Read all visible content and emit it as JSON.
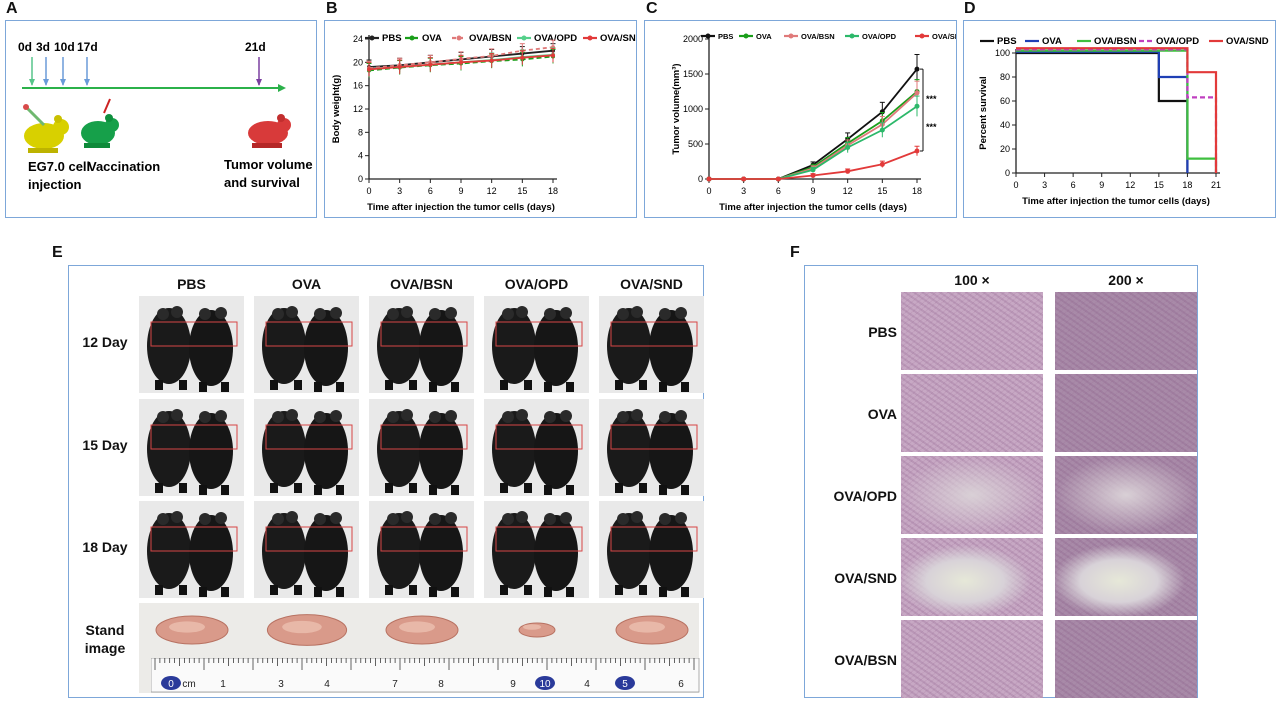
{
  "panel_labels": {
    "A": "A",
    "B": "B",
    "C": "C",
    "D": "D",
    "E": "E",
    "F": "F"
  },
  "panelA": {
    "timepoints": [
      "0d",
      "3d",
      "10d",
      "17d",
      "21d"
    ],
    "label1_line1": "EG7.0 cell",
    "label1_line2": "injection",
    "label2": "Vaccination",
    "label3_line1": "Tumor volume",
    "label3_line2": "and survival"
  },
  "chart_data": [
    {
      "type": "line",
      "panel": "B",
      "xlabel": "Time after injection the tumor cells (days)",
      "ylabel": "Body weight(g)",
      "x": [
        0,
        3,
        6,
        9,
        12,
        15,
        18
      ],
      "xlim": [
        0,
        18
      ],
      "ylim": [
        0,
        24
      ],
      "yticks": [
        0,
        4,
        8,
        12,
        16,
        20,
        24
      ],
      "legend": "top",
      "series": [
        {
          "name": "PBS",
          "color": "#222222",
          "dash": "",
          "values": [
            19.2,
            19.5,
            20.0,
            20.5,
            21.0,
            21.5,
            22.0
          ]
        },
        {
          "name": "OVA",
          "color": "#1a9e1a",
          "dash": "5,3",
          "values": [
            18.6,
            19.1,
            19.5,
            19.8,
            20.2,
            20.5,
            21.0
          ]
        },
        {
          "name": "OVA/BSN",
          "color": "#e07a7a",
          "dash": "4,3",
          "values": [
            19.0,
            19.5,
            20.0,
            20.6,
            21.1,
            22.0,
            22.6
          ]
        },
        {
          "name": "OVA/OPD",
          "color": "#55d08a",
          "dash": "",
          "values": [
            18.8,
            19.2,
            19.6,
            20.0,
            20.4,
            20.9,
            21.3
          ]
        },
        {
          "name": "OVA/SND",
          "color": "#e23a3a",
          "dash": "",
          "values": [
            18.8,
            19.2,
            19.6,
            20.0,
            20.3,
            20.8,
            21.2
          ]
        }
      ]
    },
    {
      "type": "line",
      "panel": "C",
      "xlabel": "Time after injection the tumor cells (days)",
      "ylabel": "Tumor volume(mm³)",
      "x": [
        0,
        3,
        6,
        9,
        12,
        15,
        18
      ],
      "xlim": [
        0,
        18
      ],
      "ylim": [
        0,
        2000
      ],
      "yticks": [
        0,
        500,
        1000,
        1500,
        2000
      ],
      "legend": "top",
      "annotations": [
        "***",
        "***"
      ],
      "series": [
        {
          "name": "PBS",
          "color": "#111111",
          "dash": "",
          "values": [
            0,
            0,
            0,
            200,
            570,
            960,
            1570
          ]
        },
        {
          "name": "OVA",
          "color": "#1a9e1a",
          "dash": "",
          "values": [
            0,
            0,
            0,
            170,
            510,
            830,
            1250
          ]
        },
        {
          "name": "OVA/BSN",
          "color": "#e07a7a",
          "dash": "",
          "values": [
            0,
            0,
            0,
            150,
            480,
            780,
            1230
          ]
        },
        {
          "name": "OVA/OPD",
          "color": "#2cb86a",
          "dash": "",
          "values": [
            0,
            0,
            0,
            130,
            450,
            700,
            1040
          ]
        },
        {
          "name": "OVA/SND",
          "color": "#e23a3a",
          "dash": "",
          "values": [
            0,
            0,
            0,
            50,
            110,
            210,
            400
          ]
        }
      ]
    },
    {
      "type": "line",
      "panel": "D",
      "xlabel": "Time after injection the tumor cells (days)",
      "ylabel": "Percent survival",
      "x": [
        0,
        3,
        6,
        9,
        12,
        15,
        18,
        21
      ],
      "xlim": [
        0,
        21
      ],
      "ylim": [
        0,
        100
      ],
      "yticks": [
        0,
        20,
        40,
        60,
        80,
        100
      ],
      "legend": "top",
      "series": [
        {
          "name": "PBS",
          "color": "#111111",
          "dash": "",
          "steps": [
            [
              0,
              100
            ],
            [
              15,
              100
            ],
            [
              15,
              60
            ],
            [
              18,
              60
            ],
            [
              18,
              0
            ]
          ]
        },
        {
          "name": "OVA",
          "color": "#1f3fb5",
          "dash": "",
          "steps": [
            [
              0,
              101
            ],
            [
              15,
              101
            ],
            [
              15,
              80
            ],
            [
              18,
              80
            ],
            [
              18,
              0
            ]
          ]
        },
        {
          "name": "OVA/BSN",
          "color": "#3fbf3f",
          "dash": "",
          "steps": [
            [
              0,
              102
            ],
            [
              18,
              102
            ],
            [
              18,
              12
            ],
            [
              21,
              12
            ],
            [
              21,
              0
            ]
          ]
        },
        {
          "name": "OVA/OPD",
          "color": "#c040c0",
          "dash": "5,3",
          "steps": [
            [
              0,
              103
            ],
            [
              18,
              103
            ],
            [
              18,
              63
            ],
            [
              21,
              63
            ],
            [
              21,
              0
            ]
          ]
        },
        {
          "name": "OVA/SND",
          "color": "#e23a3a",
          "dash": "",
          "steps": [
            [
              0,
              104
            ],
            [
              18,
              104
            ],
            [
              18,
              84
            ],
            [
              21,
              84
            ],
            [
              21,
              0
            ]
          ]
        }
      ]
    }
  ],
  "panelE": {
    "groups": [
      "PBS",
      "OVA",
      "OVA/BSN",
      "OVA/OPD",
      "OVA/SND"
    ],
    "rows": [
      "12 Day",
      "15 Day",
      "18 Day"
    ],
    "stand_line1": "Stand",
    "stand_line2": "image",
    "ruler_labels": [
      "0",
      "cm",
      "1",
      "3",
      "4",
      "7",
      "8",
      "9",
      "10",
      "4",
      "5",
      "6"
    ],
    "tumor_sizes": [
      1.0,
      1.1,
      1.0,
      0.5,
      1.0
    ]
  },
  "panelF": {
    "magnifications": [
      "100 ×",
      "200 ×"
    ],
    "rows": [
      "PBS",
      "OVA",
      "OVA/OPD",
      "OVA/SND",
      "OVA/BSN"
    ]
  }
}
